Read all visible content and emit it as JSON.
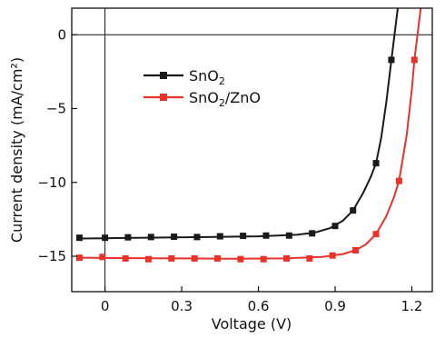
{
  "chart_data": {
    "type": "line",
    "title": "",
    "xlabel": "Voltage (V)",
    "ylabel": "Current density (mA/cm²)",
    "xlim": [
      -0.13,
      1.28
    ],
    "ylim": [
      -17.4,
      1.8
    ],
    "xticks": [
      {
        "value": 0,
        "label": "0"
      },
      {
        "value": 0.3,
        "label": "0.3"
      },
      {
        "value": 0.6,
        "label": "0.6"
      },
      {
        "value": 0.9,
        "label": "0.9"
      },
      {
        "value": 1.2,
        "label": "1.2"
      }
    ],
    "yticks": [
      {
        "value": 0,
        "label": "0"
      },
      {
        "value": -5,
        "label": "−5"
      },
      {
        "value": -10,
        "label": "−10"
      },
      {
        "value": -15,
        "label": "−15"
      }
    ],
    "grid": false,
    "legend_position": "upper-left",
    "series": [
      {
        "name": "SnO₂",
        "name_base": "SnO",
        "name_sub": "2",
        "color": "#1a1a1a",
        "marker": "square",
        "markers": [
          {
            "x": -0.1,
            "y": -13.75
          },
          {
            "x": 0.0,
            "y": -13.75
          },
          {
            "x": 0.09,
            "y": -13.72
          },
          {
            "x": 0.18,
            "y": -13.7
          },
          {
            "x": 0.27,
            "y": -13.68
          },
          {
            "x": 0.36,
            "y": -13.7
          },
          {
            "x": 0.45,
            "y": -13.65
          },
          {
            "x": 0.54,
            "y": -13.62
          },
          {
            "x": 0.63,
            "y": -13.6
          },
          {
            "x": 0.72,
            "y": -13.6
          },
          {
            "x": 0.81,
            "y": -13.45
          },
          {
            "x": 0.9,
            "y": -12.95
          },
          {
            "x": 0.97,
            "y": -11.9
          },
          {
            "x": 1.06,
            "y": -8.7
          },
          {
            "x": 1.12,
            "y": -1.7
          }
        ],
        "curve": [
          {
            "x": -0.1,
            "y": -13.8
          },
          {
            "x": 0.0,
            "y": -13.78
          },
          {
            "x": 0.2,
            "y": -13.74
          },
          {
            "x": 0.4,
            "y": -13.7
          },
          {
            "x": 0.6,
            "y": -13.65
          },
          {
            "x": 0.75,
            "y": -13.55
          },
          {
            "x": 0.82,
            "y": -13.4
          },
          {
            "x": 0.88,
            "y": -13.1
          },
          {
            "x": 0.93,
            "y": -12.6
          },
          {
            "x": 0.97,
            "y": -11.9
          },
          {
            "x": 1.01,
            "y": -10.7
          },
          {
            "x": 1.04,
            "y": -9.6
          },
          {
            "x": 1.06,
            "y": -8.7
          },
          {
            "x": 1.08,
            "y": -7.0
          },
          {
            "x": 1.1,
            "y": -4.6
          },
          {
            "x": 1.12,
            "y": -1.7
          },
          {
            "x": 1.135,
            "y": 0.4
          },
          {
            "x": 1.145,
            "y": 1.8
          }
        ]
      },
      {
        "name": "SnO₂/ZnO",
        "name_base": "SnO",
        "name_sub": "2",
        "name_tail": "/ZnO",
        "color": "#e8322a",
        "marker": "square",
        "markers": [
          {
            "x": -0.1,
            "y": -15.1
          },
          {
            "x": -0.01,
            "y": -15.05
          },
          {
            "x": 0.08,
            "y": -15.15
          },
          {
            "x": 0.17,
            "y": -15.2
          },
          {
            "x": 0.26,
            "y": -15.15
          },
          {
            "x": 0.35,
            "y": -15.15
          },
          {
            "x": 0.44,
            "y": -15.15
          },
          {
            "x": 0.53,
            "y": -15.2
          },
          {
            "x": 0.62,
            "y": -15.2
          },
          {
            "x": 0.71,
            "y": -15.15
          },
          {
            "x": 0.8,
            "y": -15.15
          },
          {
            "x": 0.89,
            "y": -14.95
          },
          {
            "x": 0.98,
            "y": -14.6
          },
          {
            "x": 1.06,
            "y": -13.5
          },
          {
            "x": 1.15,
            "y": -9.9
          },
          {
            "x": 1.21,
            "y": -1.7
          }
        ],
        "curve": [
          {
            "x": -0.1,
            "y": -15.1
          },
          {
            "x": 0.1,
            "y": -15.13
          },
          {
            "x": 0.3,
            "y": -15.15
          },
          {
            "x": 0.5,
            "y": -15.17
          },
          {
            "x": 0.7,
            "y": -15.15
          },
          {
            "x": 0.85,
            "y": -15.05
          },
          {
            "x": 0.93,
            "y": -14.85
          },
          {
            "x": 0.98,
            "y": -14.6
          },
          {
            "x": 1.02,
            "y": -14.2
          },
          {
            "x": 1.06,
            "y": -13.5
          },
          {
            "x": 1.1,
            "y": -12.3
          },
          {
            "x": 1.13,
            "y": -11.0
          },
          {
            "x": 1.15,
            "y": -9.9
          },
          {
            "x": 1.18,
            "y": -6.8
          },
          {
            "x": 1.2,
            "y": -3.7
          },
          {
            "x": 1.21,
            "y": -1.7
          },
          {
            "x": 1.225,
            "y": 0.4
          },
          {
            "x": 1.235,
            "y": 1.8
          }
        ]
      }
    ]
  }
}
